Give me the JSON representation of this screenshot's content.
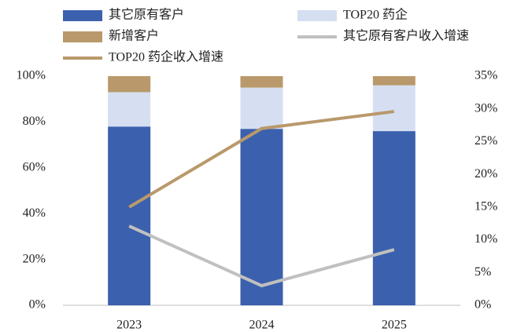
{
  "chart_data": {
    "type": "bar",
    "stacked": true,
    "categories": [
      "2023",
      "2024",
      "2025"
    ],
    "series": [
      {
        "name": "其它原有客户",
        "type": "bar",
        "color": "#3b60ad",
        "values": [
          78,
          77,
          76
        ]
      },
      {
        "name": "TOP20 药企",
        "type": "bar",
        "color": "#d5dff1",
        "values": [
          15,
          18,
          20
        ]
      },
      {
        "name": "新增客户",
        "type": "bar",
        "color": "#b9996b",
        "values": [
          7,
          5,
          4
        ]
      },
      {
        "name": "其它原有客户收入增速",
        "type": "line",
        "axis": "y2",
        "color": "#c0c0c0",
        "values": [
          12.1,
          3.0,
          8.5
        ]
      },
      {
        "name": "TOP20 药企收入增速",
        "type": "line",
        "axis": "y2",
        "color": "#b9996b",
        "values": [
          15.0,
          27.0,
          29.6
        ]
      }
    ],
    "ylim": [
      0,
      100
    ],
    "yticks": [
      {
        "value": 0,
        "label": "0%"
      },
      {
        "value": 20,
        "label": "20%"
      },
      {
        "value": 40,
        "label": "40%"
      },
      {
        "value": 60,
        "label": "60%"
      },
      {
        "value": 80,
        "label": "80%"
      },
      {
        "value": 100,
        "label": "100%"
      }
    ],
    "y2lim": [
      0,
      35
    ],
    "y2ticks": [
      {
        "value": 0,
        "label": "0%"
      },
      {
        "value": 5,
        "label": "5%"
      },
      {
        "value": 10,
        "label": "10%"
      },
      {
        "value": 15,
        "label": "15%"
      },
      {
        "value": 20,
        "label": "20%"
      },
      {
        "value": 25,
        "label": "25%"
      },
      {
        "value": 30,
        "label": "30%"
      },
      {
        "value": 35,
        "label": "35%"
      }
    ],
    "legend": "top"
  }
}
